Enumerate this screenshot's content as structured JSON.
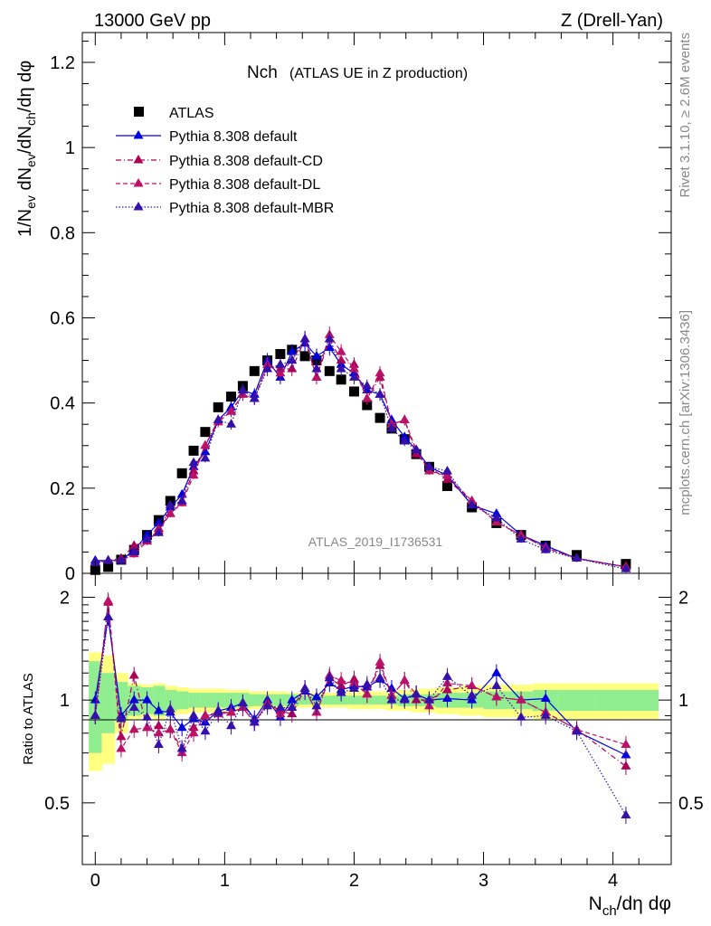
{
  "header": {
    "energy": "13000 GeV pp",
    "process": "Z (Drell-Yan)"
  },
  "side_labels": {
    "rivet": "Rivet 3.1.10, ≥ 2.6M events",
    "site": "mcplots.cern.ch [arXiv:1306.3436]"
  },
  "analysis_id": "ATLAS_2019_I1736531",
  "colors": {
    "atlas": "#000000",
    "default": "#0000dd",
    "cd": "#aa0055",
    "dl": "#bb1166",
    "mbr": "#3311aa",
    "band_stat": "#90ee90",
    "band_total": "#ffff80"
  },
  "chart_data": [
    {
      "type": "scatter",
      "panel": "main",
      "title": "Nch",
      "subtitle": "(ATLAS UE in Z production)",
      "ylabel": "1/N_ev dN_ch/dη dφ",
      "xlim": [
        -0.1,
        4.45
      ],
      "ylim": [
        0,
        1.27
      ],
      "yticks": [
        0,
        0.2,
        0.4,
        0.6,
        0.8,
        1,
        1.2
      ],
      "ytick_labels": [
        "0",
        "0.2",
        "0.4",
        "0.6",
        "0.8",
        "1",
        "1.2"
      ],
      "legend": [
        "ATLAS",
        "Pythia 8.308 default",
        "Pythia 8.308 default-CD",
        "Pythia 8.308 default-DL",
        "Pythia 8.308 default-MBR"
      ],
      "x": [
        0.0,
        0.1,
        0.2,
        0.3,
        0.4,
        0.49,
        0.58,
        0.67,
        0.76,
        0.85,
        0.95,
        1.05,
        1.14,
        1.23,
        1.33,
        1.43,
        1.52,
        1.62,
        1.71,
        1.81,
        1.9,
        2.0,
        2.1,
        2.2,
        2.29,
        2.39,
        2.48,
        2.58,
        2.72,
        2.91,
        3.1,
        3.29,
        3.48,
        3.72,
        4.1
      ],
      "series": [
        {
          "name": "ATLAS",
          "style": "square",
          "values": [
            0.008,
            0.015,
            0.032,
            0.055,
            0.09,
            0.125,
            0.17,
            0.235,
            0.288,
            0.332,
            0.39,
            0.415,
            0.44,
            0.475,
            0.5,
            0.515,
            0.525,
            0.51,
            0.5,
            0.475,
            0.455,
            0.427,
            0.395,
            0.365,
            0.34,
            0.315,
            0.28,
            0.25,
            0.205,
            0.155,
            0.118,
            0.09,
            0.065,
            0.043,
            0.022
          ]
        },
        {
          "name": "Pythia 8.308 default",
          "style": "solid",
          "values": [
            0.03,
            0.03,
            0.03,
            0.055,
            0.09,
            0.118,
            0.155,
            0.185,
            0.25,
            0.285,
            0.36,
            0.39,
            0.43,
            0.42,
            0.5,
            0.46,
            0.52,
            0.54,
            0.51,
            0.53,
            0.49,
            0.47,
            0.43,
            0.42,
            0.36,
            0.32,
            0.29,
            0.25,
            0.23,
            0.16,
            0.14,
            0.09,
            0.065,
            0.035,
            0.015
          ]
        },
        {
          "name": "Pythia 8.308 default-CD",
          "style": "dashdot",
          "values": [
            0.025,
            0.03,
            0.035,
            0.065,
            0.075,
            0.105,
            0.14,
            0.17,
            0.24,
            0.3,
            0.36,
            0.38,
            0.42,
            0.41,
            0.49,
            0.48,
            0.48,
            0.55,
            0.46,
            0.55,
            0.5,
            0.49,
            0.41,
            0.46,
            0.35,
            0.36,
            0.28,
            0.25,
            0.22,
            0.17,
            0.12,
            0.09,
            0.06,
            0.035,
            0.015
          ]
        },
        {
          "name": "Pythia 8.308 default-DL",
          "style": "dashed",
          "values": [
            0.025,
            0.03,
            0.03,
            0.045,
            0.075,
            0.1,
            0.14,
            0.165,
            0.23,
            0.3,
            0.355,
            0.38,
            0.42,
            0.41,
            0.49,
            0.47,
            0.5,
            0.55,
            0.46,
            0.56,
            0.52,
            0.48,
            0.41,
            0.47,
            0.35,
            0.36,
            0.29,
            0.24,
            0.23,
            0.17,
            0.12,
            0.09,
            0.06,
            0.035,
            0.015
          ]
        },
        {
          "name": "Pythia 8.308 default-MBR",
          "style": "dotted",
          "values": [
            0.025,
            0.03,
            0.03,
            0.05,
            0.08,
            0.095,
            0.16,
            0.17,
            0.26,
            0.27,
            0.36,
            0.35,
            0.43,
            0.41,
            0.48,
            0.49,
            0.5,
            0.55,
            0.48,
            0.55,
            0.48,
            0.46,
            0.44,
            0.42,
            0.34,
            0.31,
            0.29,
            0.25,
            0.24,
            0.16,
            0.13,
            0.08,
            0.055,
            0.035,
            0.01
          ]
        }
      ],
      "xlabel": "N_ch/dη dφ"
    },
    {
      "type": "line",
      "panel": "ratio",
      "ylabel": "Ratio to ATLAS",
      "xlabel": "N_ch/dη dφ",
      "xlim": [
        -0.1,
        4.45
      ],
      "ylim": [
        0.33,
        2.35
      ],
      "yticks": [
        0.5,
        1,
        2
      ],
      "ytick_labels": [
        "0.5",
        "1",
        "2"
      ],
      "xticks": [
        0,
        1,
        2,
        3,
        4
      ],
      "xtick_labels": [
        "0",
        "1",
        "2",
        "3",
        "4"
      ],
      "x": [
        0.0,
        0.1,
        0.2,
        0.3,
        0.4,
        0.49,
        0.58,
        0.67,
        0.76,
        0.85,
        0.95,
        1.05,
        1.14,
        1.23,
        1.33,
        1.43,
        1.52,
        1.62,
        1.71,
        1.81,
        1.9,
        2.0,
        2.1,
        2.2,
        2.29,
        2.39,
        2.48,
        2.58,
        2.72,
        2.91,
        3.1,
        3.29,
        3.48,
        3.72,
        4.1
      ],
      "band_edges": [
        -0.05,
        0.05,
        0.15,
        0.25,
        0.35,
        0.45,
        0.54,
        0.63,
        0.72,
        0.81,
        0.9,
        1.0,
        1.1,
        1.19,
        1.28,
        1.38,
        1.48,
        1.57,
        1.67,
        1.76,
        1.86,
        1.95,
        2.05,
        2.15,
        2.25,
        2.34,
        2.44,
        2.53,
        2.63,
        2.81,
        3.0,
        3.19,
        3.38,
        3.57,
        3.86,
        4.35
      ],
      "stat_band": [
        0.3,
        0.2,
        0.13,
        0.1,
        0.09,
        0.1,
        0.07,
        0.06,
        0.05,
        0.05,
        0.05,
        0.05,
        0.05,
        0.04,
        0.04,
        0.04,
        0.04,
        0.03,
        0.03,
        0.03,
        0.03,
        0.03,
        0.03,
        0.03,
        0.03,
        0.04,
        0.04,
        0.04,
        0.05,
        0.05,
        0.06,
        0.06,
        0.07,
        0.07,
        0.07
      ],
      "total_band": [
        0.38,
        0.35,
        0.2,
        0.12,
        0.11,
        0.12,
        0.1,
        0.09,
        0.08,
        0.08,
        0.08,
        0.07,
        0.07,
        0.06,
        0.06,
        0.06,
        0.05,
        0.05,
        0.05,
        0.05,
        0.05,
        0.06,
        0.06,
        0.06,
        0.07,
        0.07,
        0.08,
        0.08,
        0.09,
        0.1,
        0.11,
        0.11,
        0.12,
        0.12,
        0.12
      ],
      "series": [
        {
          "name": "Pythia 8.308 default",
          "style": "solid",
          "values": [
            1.0,
            1.75,
            0.9,
            1.0,
            1.0,
            0.93,
            0.92,
            0.83,
            0.88,
            0.86,
            0.93,
            0.95,
            0.98,
            0.88,
            1.0,
            0.89,
            1.0,
            1.06,
            1.02,
            1.12,
            1.07,
            1.1,
            1.09,
            1.15,
            1.08,
            1.01,
            1.04,
            1.0,
            1.01,
            1.0,
            1.2,
            1.0,
            1.01,
            0.81,
            0.69
          ]
        },
        {
          "name": "Pythia 8.308 default-CD",
          "style": "dashdot",
          "values": [
            0.9,
            1.93,
            0.78,
            1.18,
            0.83,
            0.84,
            0.82,
            0.72,
            0.83,
            0.9,
            0.92,
            0.92,
            0.95,
            0.86,
            0.98,
            0.93,
            0.91,
            1.08,
            0.92,
            1.16,
            1.1,
            1.15,
            1.04,
            1.26,
            1.03,
            1.14,
            1.0,
            1.0,
            1.07,
            1.1,
            1.02,
            1.0,
            0.92,
            0.82,
            0.64
          ]
        },
        {
          "name": "Pythia 8.308 default-DL",
          "style": "dashed",
          "values": [
            0.9,
            1.95,
            0.72,
            0.82,
            0.83,
            0.8,
            0.82,
            0.7,
            0.8,
            0.9,
            0.91,
            0.92,
            0.95,
            0.86,
            0.98,
            0.91,
            0.95,
            1.08,
            0.92,
            1.18,
            1.14,
            1.12,
            1.04,
            1.29,
            1.03,
            1.14,
            1.04,
            0.96,
            1.12,
            1.1,
            1.02,
            1.0,
            0.92,
            0.82,
            0.74
          ]
        },
        {
          "name": "Pythia 8.308 default-MBR",
          "style": "dotted",
          "values": [
            0.9,
            1.75,
            0.88,
            0.95,
            0.89,
            0.74,
            0.94,
            0.72,
            0.9,
            0.81,
            0.92,
            0.84,
            0.98,
            0.86,
            0.96,
            0.95,
            0.95,
            1.08,
            0.96,
            1.16,
            1.05,
            1.08,
            1.11,
            1.16,
            1.0,
            1.0,
            1.04,
            1.0,
            1.17,
            1.03,
            1.1,
            0.89,
            0.9,
            0.81,
            0.46
          ]
        }
      ]
    }
  ]
}
